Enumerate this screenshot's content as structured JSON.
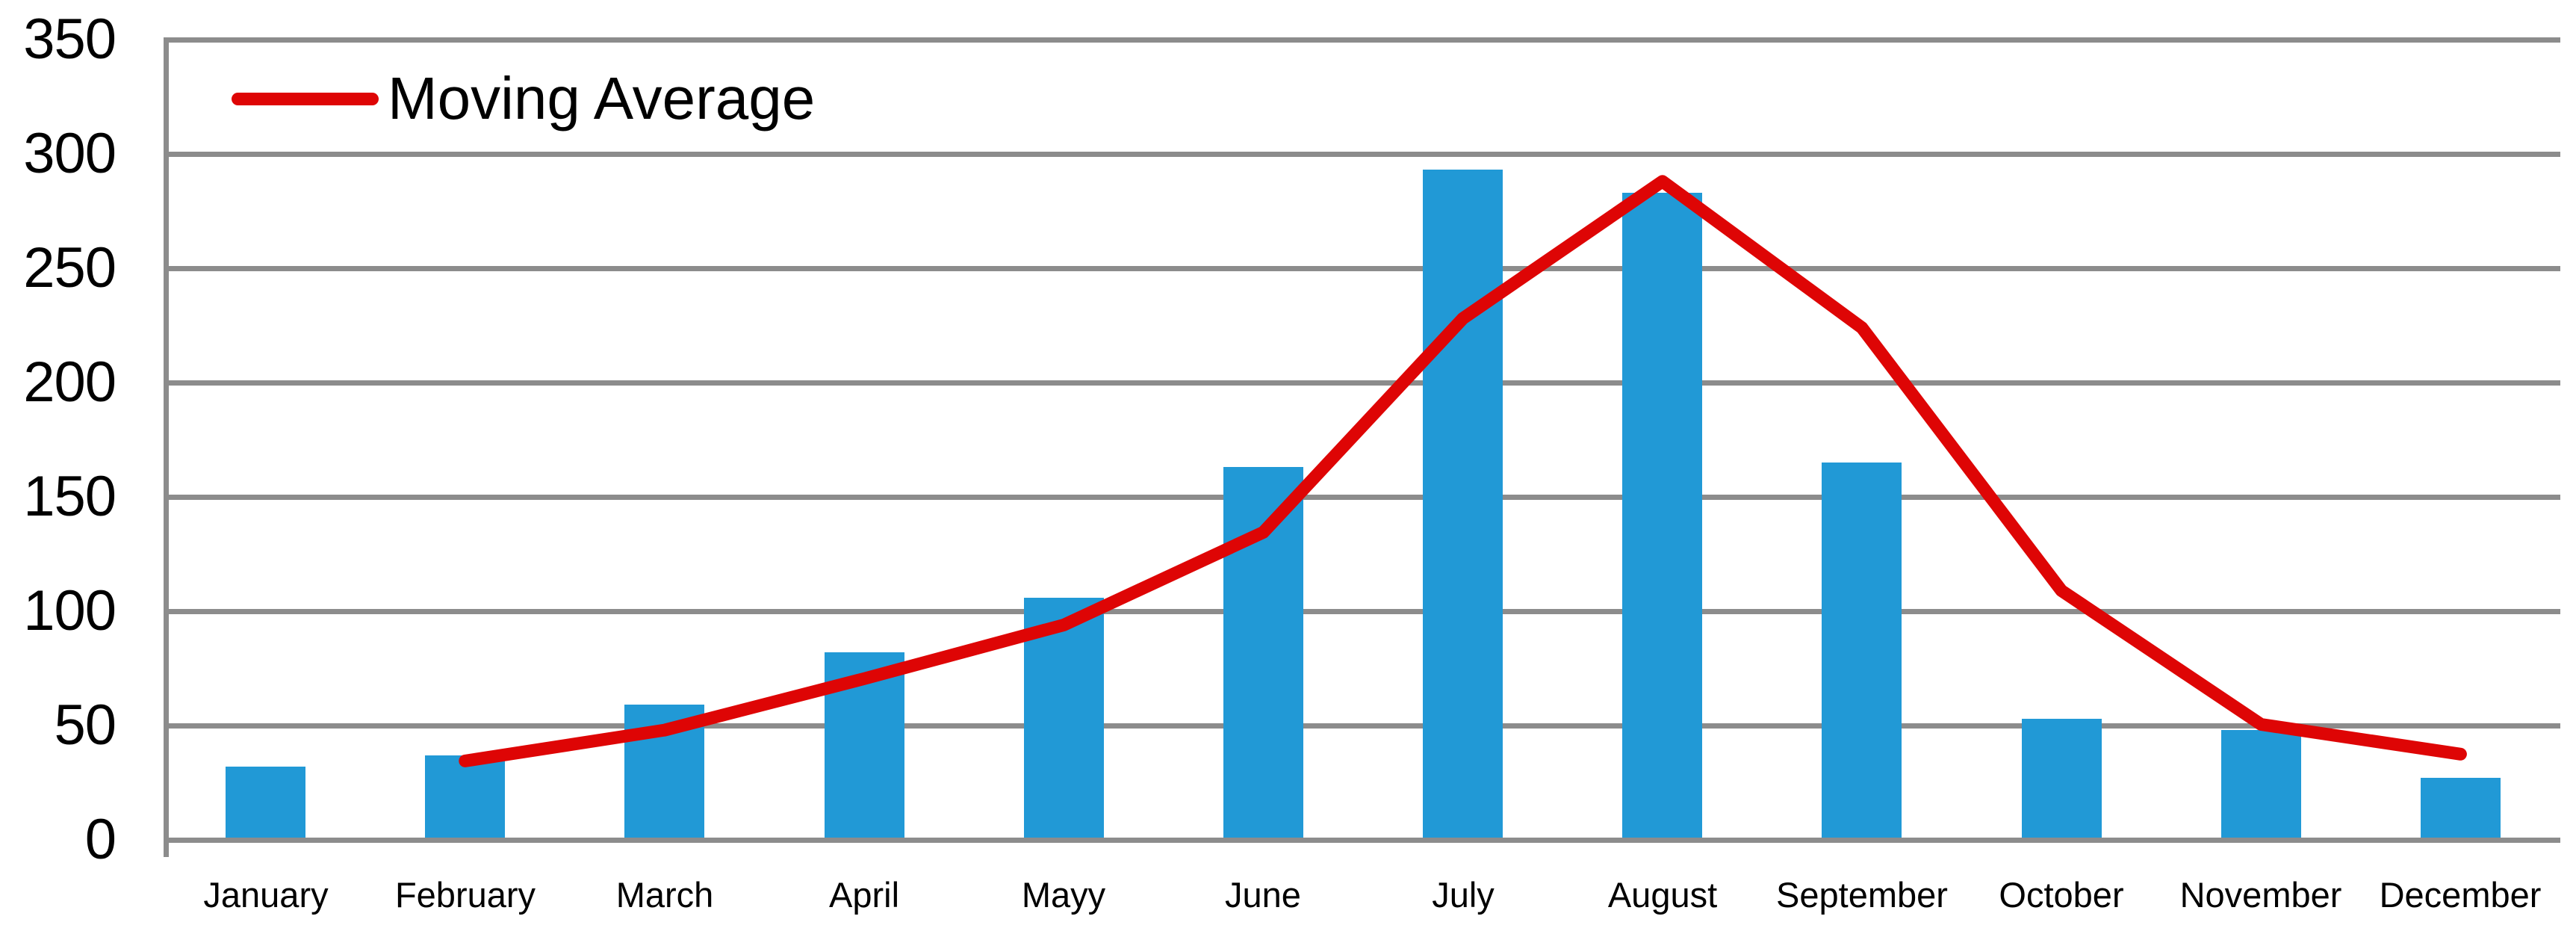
{
  "chart_data": {
    "type": "bar",
    "title": "",
    "xlabel": "",
    "ylabel": "",
    "categories": [
      "January",
      "February",
      "March",
      "April",
      "Mayy",
      "June",
      "July",
      "August",
      "September",
      "October",
      "November",
      "December"
    ],
    "series": [
      {
        "name": "",
        "type": "bar",
        "color": "#2199D6",
        "values": [
          32,
          37,
          59,
          82,
          106,
          163,
          293,
          283,
          165,
          53,
          48,
          27
        ]
      },
      {
        "name": "Moving Average",
        "type": "line",
        "color": "#DE0505",
        "values": [
          null,
          34.5,
          48,
          70.5,
          94,
          134.5,
          228,
          288,
          224,
          109,
          50.5,
          37.5
        ]
      }
    ],
    "ylim": [
      0,
      350
    ],
    "ytick_interval": 50,
    "ytick_labels": [
      "0",
      "50",
      "100",
      "150",
      "200",
      "250",
      "300",
      "350"
    ],
    "grid": "horizontal",
    "legend": {
      "visible": true,
      "position": "top-left-inside",
      "entries": [
        "Moving Average"
      ]
    }
  },
  "colors": {
    "bar_blue": "#2199D6",
    "line_red": "#DE0505",
    "grid_gray": "#8C8C8C",
    "text_black": "#000000",
    "background": "#FFFFFF"
  }
}
